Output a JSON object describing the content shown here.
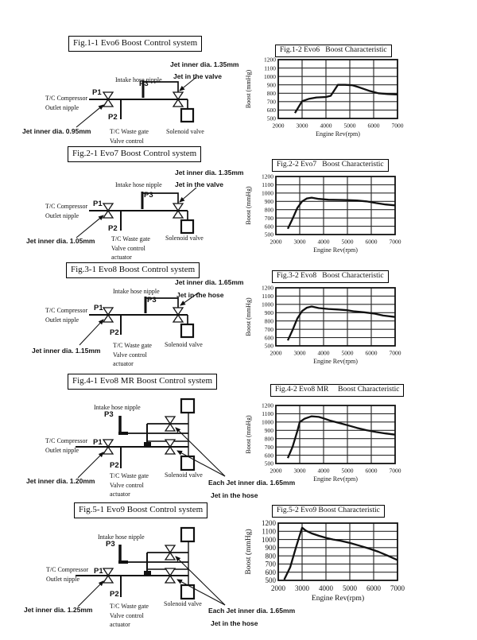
{
  "page": {
    "background": "#ffffff",
    "ink": "#111111"
  },
  "sections": [
    {
      "figure_title": "Fig.1-1 Evo6 Boost Control system",
      "labels": {
        "jet_top": "Jet inner dia. 1.35mm",
        "jet_location": "Jet in the valve",
        "intake": "Intake hose nipple",
        "p1": "P1",
        "p2": "P2",
        "p3": "P3",
        "compressor": [
          "T/C Compressor",
          "Outlet nipple"
        ],
        "jet_main": "Jet inner dia. 0.95mm",
        "wastegate": [
          "T/C Waste gate",
          "Valve control"
        ],
        "solenoid": "Solenoid valve"
      }
    },
    {
      "figure_title": "Fig.2-1 Evo7 Boost Control system",
      "labels": {
        "jet_top": "Jet inner dia. 1.35mm",
        "jet_location": "Jet in the valve",
        "intake": "Intake hose nipple",
        "p1": "P1",
        "p2": "P2",
        "p3": "P3",
        "compressor": [
          "T/C Compressor",
          "Outlet nipple"
        ],
        "jet_main": "Jet inner dia. 1.05mm",
        "wastegate": [
          "T/C Waste gate",
          "Valve control",
          "actuator"
        ],
        "solenoid": "Solenoid valve"
      }
    },
    {
      "figure_title": "Fig.3-1 Evo8 Boost Control system",
      "labels": {
        "jet_top": "Jet inner dia. 1.65mm",
        "jet_location": "Jet in the hose",
        "intake": "Intake hose nipple",
        "p1": "P1",
        "p2": "P2",
        "p3": "P3",
        "compressor": [
          "T/C Compressor",
          "Outlet nipple"
        ],
        "jet_main": "Jet inner dia. 1.15mm",
        "wastegate": [
          "T/C Waste gate",
          "Valve control",
          "actuator"
        ],
        "solenoid": "Solenoid valve"
      }
    },
    {
      "figure_title": "Fig.4-1 Evo8 MR Boost Control system",
      "labels": {
        "intake": "Intake hose nipple",
        "p1": "P1",
        "p2": "P2",
        "p3": "P3",
        "compressor": [
          "T/C Compressor",
          "Outlet nipple"
        ],
        "jet_main": "Jet inner dia. 1.20mm",
        "wastegate": [
          "T/C Waste gate",
          "Valve control",
          "actuator"
        ],
        "solenoid": "Solenoid valve",
        "each_jet": "Each Jet inner dia. 1.65mm",
        "jet_location": "Jet in the hose"
      }
    },
    {
      "figure_title": "Fig.5-1 Evo9 Boost Control system",
      "labels": {
        "intake": "Intake hose nipple",
        "p1": "P1",
        "p2": "P2",
        "p3": "P3",
        "compressor": [
          "T/C Compressor",
          "Outlet nipple"
        ],
        "jet_main": "Jet inner dia. 1.25mm",
        "wastegate": [
          "T/C Waste gate",
          "Valve control",
          "actuator"
        ],
        "solenoid": "Solenoid valve",
        "each_jet": "Each Jet inner dia. 1.65mm",
        "jet_location": "Jet in the hose"
      }
    }
  ],
  "chart_data": [
    {
      "type": "line",
      "title": "Fig.1-2 Evo6   Boost Characteristic",
      "xlabel": "Engine Rev(rpm)",
      "ylabel": "Boost (mmHg)",
      "xlim": [
        2000,
        7000
      ],
      "ylim": [
        500,
        1200
      ],
      "xtick_step": 1000,
      "ytick_step": 100,
      "grid": true,
      "series": [
        {
          "name": "Evo6 boost",
          "x": [
            2700,
            3000,
            3300,
            3600,
            4000,
            4200,
            4500,
            4800,
            5100,
            5400,
            5800,
            6200,
            6600,
            7000
          ],
          "y": [
            565,
            705,
            735,
            750,
            755,
            770,
            900,
            900,
            895,
            870,
            830,
            800,
            790,
            785
          ]
        }
      ]
    },
    {
      "type": "line",
      "title": "Fig.2-2 Evo7   Boost Characteristic",
      "xlabel": "Engine Rev(rpm)",
      "ylabel": "Boost (mmHg)",
      "xlim": [
        2000,
        7000
      ],
      "ylim": [
        500,
        1200
      ],
      "xtick_step": 1000,
      "ytick_step": 100,
      "grid": true,
      "series": [
        {
          "name": "Evo7 boost",
          "x": [
            2500,
            2700,
            2900,
            3100,
            3300,
            3500,
            3800,
            4200,
            4600,
            5000,
            5400,
            5800,
            6200,
            6600,
            7000
          ],
          "y": [
            570,
            690,
            820,
            900,
            935,
            945,
            930,
            920,
            918,
            915,
            910,
            900,
            880,
            862,
            852
          ]
        }
      ]
    },
    {
      "type": "line",
      "title": "Fig.3-2 Evo8   Boost Characteristic",
      "xlabel": "Engine Rev(rpm)",
      "ylabel": "Boost (mmHg)",
      "xlim": [
        2000,
        7000
      ],
      "ylim": [
        500,
        1200
      ],
      "xtick_step": 1000,
      "ytick_step": 100,
      "grid": true,
      "series": [
        {
          "name": "Evo8 boost",
          "x": [
            2500,
            2700,
            2900,
            3100,
            3300,
            3500,
            3800,
            4200,
            4600,
            5000,
            5300,
            5700,
            6100,
            6500,
            7000
          ],
          "y": [
            565,
            690,
            830,
            920,
            960,
            975,
            955,
            945,
            938,
            930,
            915,
            905,
            890,
            865,
            848
          ]
        }
      ]
    },
    {
      "type": "line",
      "title": "Fig.4-2 Evo8 MR     Boost Characteristic",
      "xlabel": "Engine Rev(rpm)",
      "ylabel": "Boost (mmHg)",
      "xlim": [
        2000,
        7000
      ],
      "ylim": [
        500,
        1200
      ],
      "xtick_step": 1000,
      "ytick_step": 100,
      "grid": true,
      "series": [
        {
          "name": "Evo8 MR boost",
          "x": [
            2500,
            2700,
            2900,
            3000,
            3200,
            3500,
            3800,
            4000,
            4300,
            4700,
            5000,
            5400,
            5800,
            6200,
            6600,
            7000
          ],
          "y": [
            565,
            700,
            890,
            1000,
            1040,
            1070,
            1062,
            1045,
            1015,
            985,
            962,
            930,
            902,
            880,
            862,
            848
          ]
        }
      ]
    },
    {
      "type": "line",
      "title": "Fig.5-2 Evo9 Boost Characteristic",
      "xlabel": "Engine Rev(rpm)",
      "ylabel": "Boost (mmHg)",
      "xlim": [
        2000,
        7000
      ],
      "ylim": [
        500,
        1200
      ],
      "xtick_step": 1000,
      "ytick_step": 100,
      "grid": true,
      "series": [
        {
          "name": "Evo9 boost",
          "x": [
            2250,
            2500,
            2750,
            3000,
            3150,
            3400,
            3700,
            4000,
            4300,
            4600,
            5000,
            5400,
            5800,
            6200,
            6600,
            7000
          ],
          "y": [
            510,
            660,
            910,
            1145,
            1110,
            1075,
            1045,
            1020,
            1000,
            985,
            958,
            925,
            890,
            850,
            800,
            748
          ]
        }
      ]
    }
  ]
}
